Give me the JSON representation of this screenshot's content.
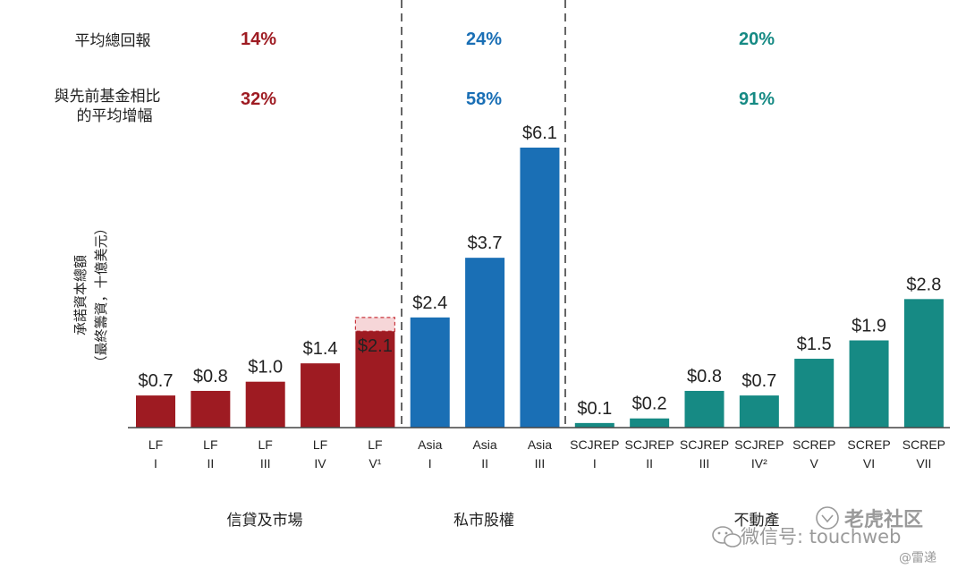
{
  "chart_data": {
    "type": "bar",
    "ylabel_line1": "承諾資本總額",
    "ylabel_line2": "（最終籌資，十億美元）",
    "row_labels": {
      "avg_total_return": "平均總回報",
      "avg_increase_line1": "與先前基金相比",
      "avg_increase_line2": "的平均增幅"
    },
    "ylim": [
      0,
      6.1
    ],
    "groups": [
      {
        "name": "信貸及市場",
        "color": "#9e1b22",
        "avg_total_return": "14%",
        "avg_increase": "32%",
        "bars": [
          {
            "cat1": "LF",
            "cat2": "I",
            "value": 0.7,
            "label": "$0.7"
          },
          {
            "cat1": "LF",
            "cat2": "II",
            "value": 0.8,
            "label": "$0.8"
          },
          {
            "cat1": "LF",
            "cat2": "III",
            "value": 1.0,
            "label": "$1.0"
          },
          {
            "cat1": "LF",
            "cat2": "IV",
            "value": 1.4,
            "label": "$1.4"
          },
          {
            "cat1": "LF",
            "cat2": "V¹",
            "value": 2.1,
            "label": "$2.1",
            "target_value": 2.4,
            "label_inside": true
          }
        ]
      },
      {
        "name": "私市股權",
        "color": "#1a6fb5",
        "avg_total_return": "24%",
        "avg_increase": "58%",
        "bars": [
          {
            "cat1": "Asia",
            "cat2": "I",
            "value": 2.4,
            "label": "$2.4"
          },
          {
            "cat1": "Asia",
            "cat2": "II",
            "value": 3.7,
            "label": "$3.7"
          },
          {
            "cat1": "Asia",
            "cat2": "III",
            "value": 6.1,
            "label": "$6.1"
          }
        ]
      },
      {
        "name": "不動產",
        "color": "#168a84",
        "avg_total_return": "20%",
        "avg_increase": "91%",
        "bars": [
          {
            "cat1": "SCJREP",
            "cat2": "I",
            "value": 0.1,
            "label": "$0.1"
          },
          {
            "cat1": "SCJREP",
            "cat2": "II",
            "value": 0.2,
            "label": "$0.2"
          },
          {
            "cat1": "SCJREP",
            "cat2": "III",
            "value": 0.8,
            "label": "$0.8"
          },
          {
            "cat1": "SCJREP",
            "cat2": "IV²",
            "value": 0.7,
            "label": "$0.7"
          },
          {
            "cat1": "SCREP",
            "cat2": "V",
            "value": 1.5,
            "label": "$1.5"
          },
          {
            "cat1": "SCREP",
            "cat2": "VI",
            "value": 1.9,
            "label": "$1.9"
          },
          {
            "cat1": "SCREP",
            "cat2": "VII",
            "value": 2.8,
            "label": "$2.8"
          }
        ]
      }
    ]
  },
  "watermark": {
    "text": "微信号: touchweb",
    "brand": "老虎社区",
    "handle": "@雷递",
    "color": "#9a9a9a"
  }
}
